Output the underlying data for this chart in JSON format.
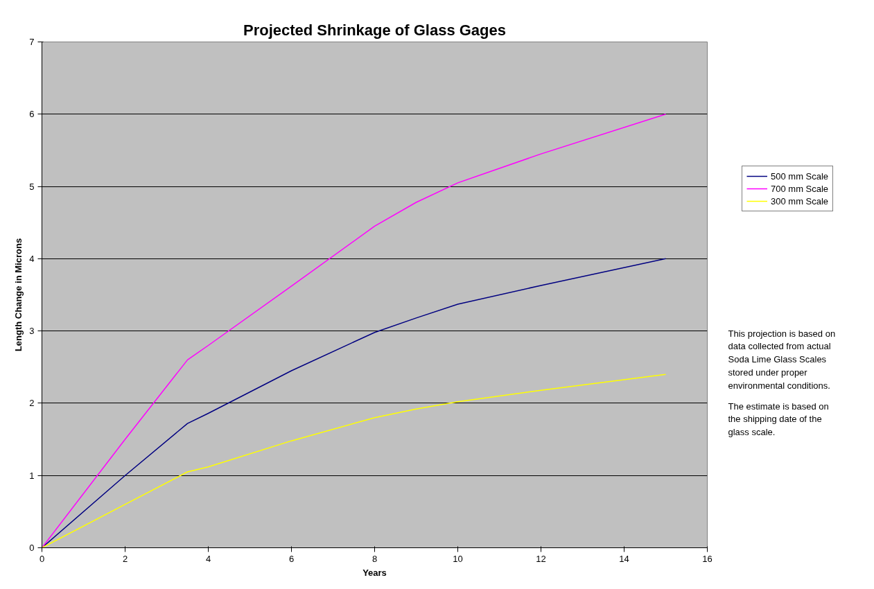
{
  "chart_data": {
    "type": "line",
    "title": "Projected Shrinkage of Glass Gages",
    "xlabel": "Years",
    "ylabel": "Length Change in Microns",
    "x": [
      0,
      2,
      3.5,
      4,
      6,
      8,
      9,
      10,
      12,
      15
    ],
    "series": [
      {
        "name": "500 mm Scale",
        "color": "#000080",
        "values": [
          0,
          1.0,
          1.72,
          1.86,
          2.45,
          2.98,
          3.18,
          3.37,
          3.63,
          4.0
        ]
      },
      {
        "name": "700 mm Scale",
        "color": "#ff00ff",
        "values": [
          0,
          1.5,
          2.6,
          2.8,
          3.62,
          4.45,
          4.78,
          5.05,
          5.45,
          6.0
        ]
      },
      {
        "name": "300 mm Scale",
        "color": "#ffff00",
        "values": [
          0,
          0.6,
          1.05,
          1.12,
          1.48,
          1.8,
          1.92,
          2.02,
          2.18,
          2.4
        ]
      }
    ],
    "xlim": [
      0,
      16
    ],
    "xticks": [
      0,
      2,
      4,
      6,
      8,
      10,
      12,
      14,
      16
    ],
    "ylim": [
      0,
      7
    ],
    "yticks": [
      0,
      1,
      2,
      3,
      4,
      5,
      6,
      7
    ],
    "grid": "y",
    "legend": "right",
    "marker": "none",
    "line_style": "solid",
    "annotations": [
      "This projection is based on data collected from actual Soda Lime Glass Scales stored under proper environmental conditions.",
      "The estimate is based on the shipping date of the glass scale."
    ]
  }
}
